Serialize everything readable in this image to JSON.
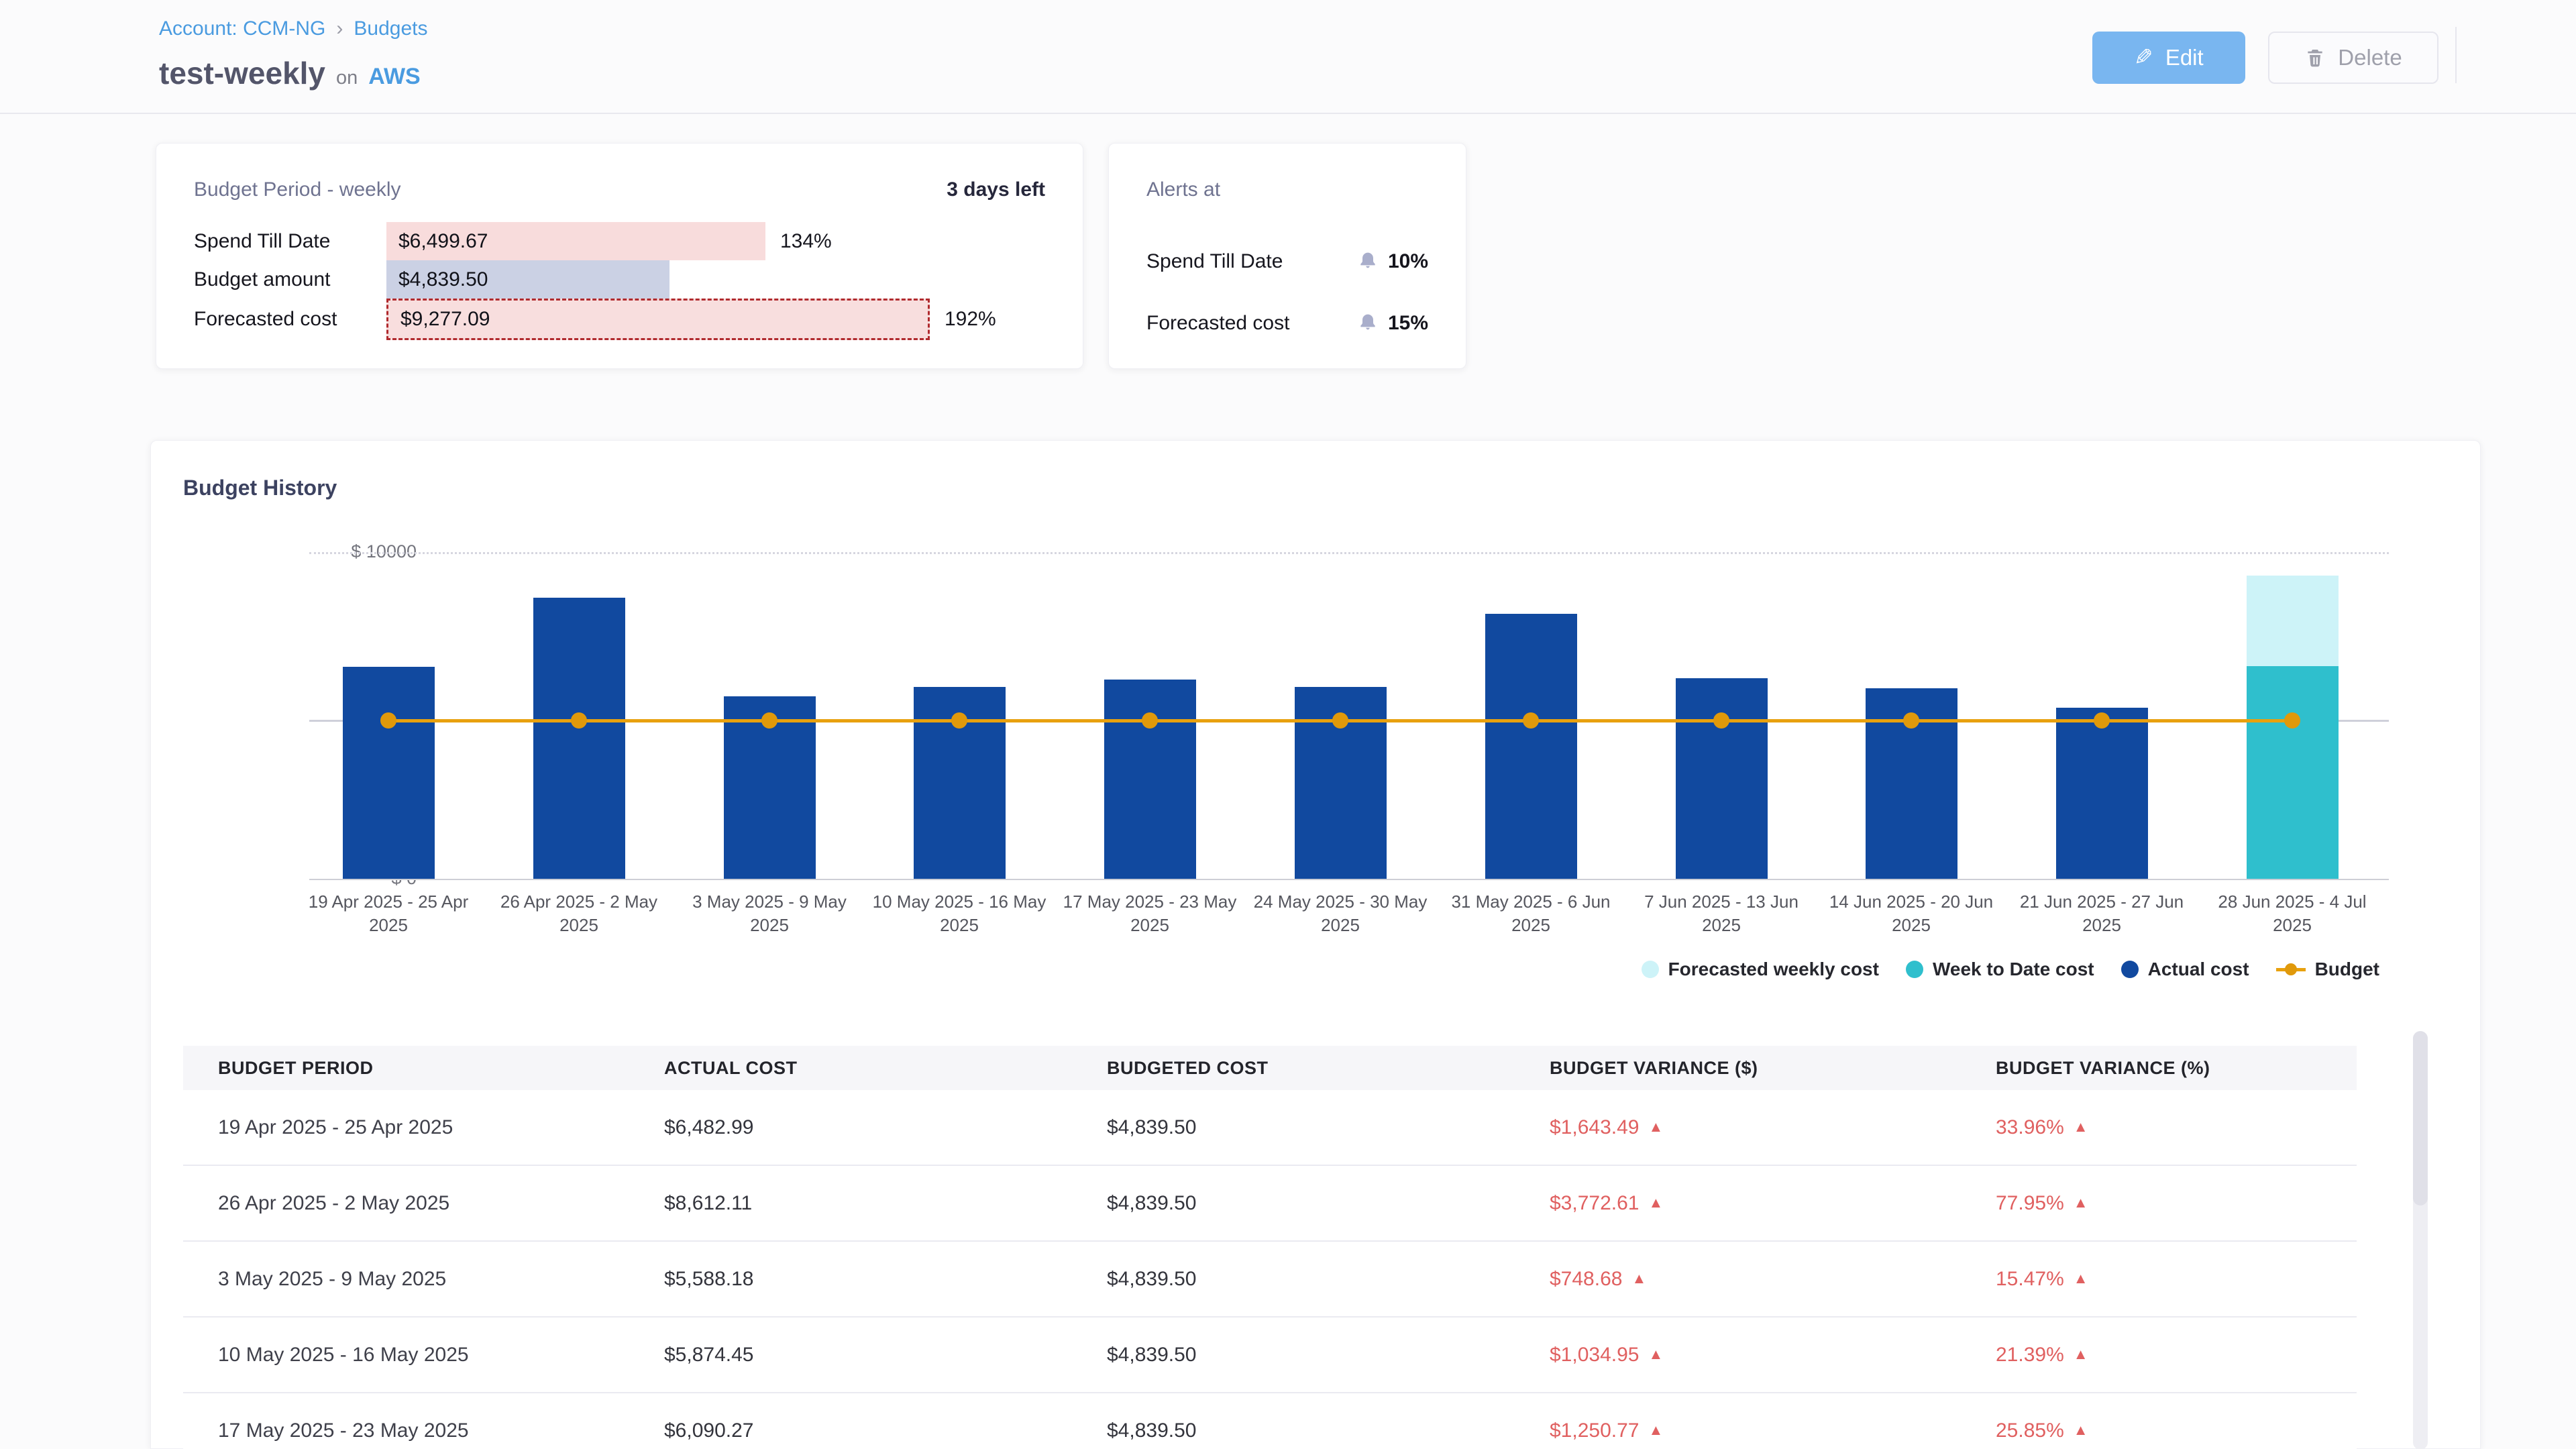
{
  "breadcrumb": {
    "account": "Account: CCM-NG",
    "separator": "›",
    "page": "Budgets"
  },
  "header": {
    "title": "test-weekly",
    "on_word": "on",
    "provider": "AWS",
    "edit_label": "Edit",
    "delete_label": "Delete"
  },
  "budget_period_card": {
    "title": "Budget Period - weekly",
    "days_left": "3 days left",
    "rows": [
      {
        "label": "Spend Till Date",
        "value": "$6,499.67",
        "percent": "134%",
        "width_pct": 134,
        "style": "spend"
      },
      {
        "label": "Budget amount",
        "value": "$4,839.50",
        "percent": "",
        "width_pct": 100,
        "style": "budget"
      },
      {
        "label": "Forecasted cost",
        "value": "$9,277.09",
        "percent": "192%",
        "width_pct": 192,
        "style": "forecast"
      }
    ]
  },
  "alerts_card": {
    "title": "Alerts at",
    "rows": [
      {
        "label": "Spend Till Date",
        "percent": "10%"
      },
      {
        "label": "Forecasted cost",
        "percent": "15%"
      }
    ]
  },
  "chart_card": {
    "title": "Budget History"
  },
  "chart_data": {
    "type": "bar",
    "title": "Budget History",
    "ylim": [
      0,
      10000
    ],
    "ytick_labels": {
      "top": "$ 10000",
      "bottom": "$ 0"
    },
    "grid": "horizontal",
    "legend_position": "bottom-right",
    "categories": [
      "19 Apr 2025 - 25 Apr 2025",
      "26 Apr 2025 - 2 May 2025",
      "3 May 2025 - 9 May 2025",
      "10 May 2025 - 16 May 2025",
      "17 May 2025 - 23 May 2025",
      "24 May 2025 - 30 May 2025",
      "31 May 2025 - 6 Jun 2025",
      "7 Jun 2025 - 13 Jun 2025",
      "14 Jun 2025 - 20 Jun 2025",
      "21 Jun 2025 - 27 Jun 2025",
      "28 Jun 2025 - 4 Jul 2025"
    ],
    "series": [
      {
        "name": "Actual cost",
        "type": "bar",
        "color": "#11499f",
        "values": [
          6482.99,
          8612.11,
          5588.18,
          5874.45,
          6090.27,
          5880,
          8120,
          6140,
          5840,
          5230,
          null
        ]
      },
      {
        "name": "Week to Date cost",
        "type": "bar",
        "color": "#2fbfcd",
        "values": [
          null,
          null,
          null,
          null,
          null,
          null,
          null,
          null,
          null,
          null,
          6499.67
        ]
      },
      {
        "name": "Forecasted weekly cost",
        "type": "bar",
        "color": "#cdf3f8",
        "values": [
          null,
          null,
          null,
          null,
          null,
          null,
          null,
          null,
          null,
          null,
          9277.09
        ]
      },
      {
        "name": "Budget",
        "type": "line",
        "color": "#e8a10e",
        "values": [
          4839.5,
          4839.5,
          4839.5,
          4839.5,
          4839.5,
          4839.5,
          4839.5,
          4839.5,
          4839.5,
          4839.5,
          4839.5
        ]
      }
    ],
    "legend": [
      "Forecasted weekly cost",
      "Week to Date cost",
      "Actual cost",
      "Budget"
    ]
  },
  "table": {
    "columns": [
      "BUDGET PERIOD",
      "ACTUAL COST",
      "BUDGETED COST",
      "BUDGET VARIANCE ($)",
      "BUDGET VARIANCE (%)"
    ],
    "rows": [
      {
        "period": "19 Apr 2025 - 25 Apr 2025",
        "actual": "$6,482.99",
        "budgeted": "$4,839.50",
        "variance_usd": "$1,643.49",
        "variance_pct": "33.96%",
        "direction": "up"
      },
      {
        "period": "26 Apr 2025 - 2 May 2025",
        "actual": "$8,612.11",
        "budgeted": "$4,839.50",
        "variance_usd": "$3,772.61",
        "variance_pct": "77.95%",
        "direction": "up"
      },
      {
        "period": "3 May 2025 - 9 May 2025",
        "actual": "$5,588.18",
        "budgeted": "$4,839.50",
        "variance_usd": "$748.68",
        "variance_pct": "15.47%",
        "direction": "up"
      },
      {
        "period": "10 May 2025 - 16 May 2025",
        "actual": "$5,874.45",
        "budgeted": "$4,839.50",
        "variance_usd": "$1,034.95",
        "variance_pct": "21.39%",
        "direction": "up"
      },
      {
        "period": "17 May 2025 - 23 May 2025",
        "actual": "$6,090.27",
        "budgeted": "$4,839.50",
        "variance_usd": "$1,250.77",
        "variance_pct": "25.85%",
        "direction": "up"
      }
    ]
  },
  "colors": {
    "link_blue": "#4a9be0",
    "actual_bar": "#11499f",
    "week_to_date_bar": "#2fbfcd",
    "forecast_bar": "#cdf3f8",
    "budget_line": "#e8a10e",
    "variance_red": "#e06060",
    "spend_bar_bg": "#f8dcdc",
    "budget_bar_bg": "#cbd1e4",
    "forecast_row_border": "#b02a2e"
  }
}
